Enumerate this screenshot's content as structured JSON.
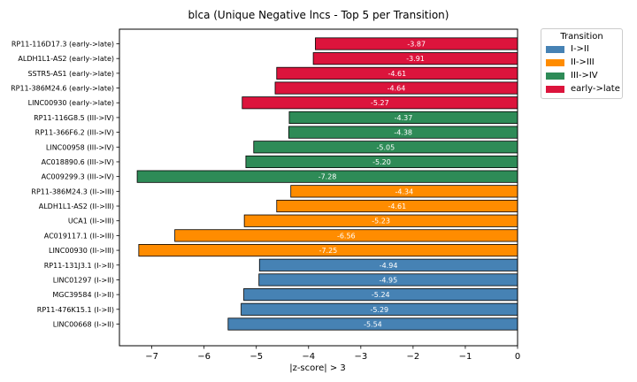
{
  "chart_data": {
    "type": "bar",
    "orientation": "horizontal",
    "title": "blca (Unique Negative lncs - Top 5 per Transition)",
    "xlabel": "|z-score| > 3",
    "xlim": [
      -7.62,
      0
    ],
    "xticks": [
      -7,
      -6,
      -5,
      -4,
      -3,
      -2,
      -1,
      0
    ],
    "xtick_labels": [
      "−7",
      "−6",
      "−5",
      "−4",
      "−3",
      "−2",
      "−1",
      "0"
    ],
    "legend": {
      "title": "Transition",
      "position": "upper-right-outside",
      "entries": [
        {
          "label": "I->II",
          "color": "#4682b4"
        },
        {
          "label": "II->III",
          "color": "#ff8c00"
        },
        {
          "label": "III->IV",
          "color": "#2e8b57"
        },
        {
          "label": "early->late",
          "color": "#dc143c"
        }
      ]
    },
    "bars": [
      {
        "label": "RP11-116D17.3 (early->late)",
        "value": -3.87,
        "value_label": "-3.87",
        "group": "early->late",
        "color": "#dc143c"
      },
      {
        "label": "ALDH1L1-AS2 (early->late)",
        "value": -3.91,
        "value_label": "-3.91",
        "group": "early->late",
        "color": "#dc143c"
      },
      {
        "label": "SSTR5-AS1 (early->late)",
        "value": -4.61,
        "value_label": "-4.61",
        "group": "early->late",
        "color": "#dc143c"
      },
      {
        "label": "RP11-386M24.6 (early->late)",
        "value": -4.64,
        "value_label": "-4.64",
        "group": "early->late",
        "color": "#dc143c"
      },
      {
        "label": "LINC00930 (early->late)",
        "value": -5.27,
        "value_label": "-5.27",
        "group": "early->late",
        "color": "#dc143c"
      },
      {
        "label": "RP11-116G8.5 (III->IV)",
        "value": -4.37,
        "value_label": "-4.37",
        "group": "III->IV",
        "color": "#2e8b57"
      },
      {
        "label": "RP11-366F6.2 (III->IV)",
        "value": -4.38,
        "value_label": "-4.38",
        "group": "III->IV",
        "color": "#2e8b57"
      },
      {
        "label": "LINC00958 (III->IV)",
        "value": -5.05,
        "value_label": "-5.05",
        "group": "III->IV",
        "color": "#2e8b57"
      },
      {
        "label": "AC018890.6 (III->IV)",
        "value": -5.2,
        "value_label": "-5.20",
        "group": "III->IV",
        "color": "#2e8b57"
      },
      {
        "label": "AC009299.3 (III->IV)",
        "value": -7.28,
        "value_label": "-7.28",
        "group": "III->IV",
        "color": "#2e8b57"
      },
      {
        "label": "RP11-386M24.3 (II->III)",
        "value": -4.34,
        "value_label": "-4.34",
        "group": "II->III",
        "color": "#ff8c00"
      },
      {
        "label": "ALDH1L1-AS2 (II->III)",
        "value": -4.61,
        "value_label": "-4.61",
        "group": "II->III",
        "color": "#ff8c00"
      },
      {
        "label": "UCA1 (II->III)",
        "value": -5.23,
        "value_label": "-5.23",
        "group": "II->III",
        "color": "#ff8c00"
      },
      {
        "label": "AC019117.1 (II->III)",
        "value": -6.56,
        "value_label": "-6.56",
        "group": "II->III",
        "color": "#ff8c00"
      },
      {
        "label": "LINC00930 (II->III)",
        "value": -7.25,
        "value_label": "-7.25",
        "group": "II->III",
        "color": "#ff8c00"
      },
      {
        "label": "RP11-131J3.1 (I->II)",
        "value": -4.94,
        "value_label": "-4.94",
        "group": "I->II",
        "color": "#4682b4"
      },
      {
        "label": "LINC01297 (I->II)",
        "value": -4.95,
        "value_label": "-4.95",
        "group": "I->II",
        "color": "#4682b4"
      },
      {
        "label": "MGC39584 (I->II)",
        "value": -5.24,
        "value_label": "-5.24",
        "group": "I->II",
        "color": "#4682b4"
      },
      {
        "label": "RP11-476K15.1 (I->II)",
        "value": -5.29,
        "value_label": "-5.29",
        "group": "I->II",
        "color": "#4682b4"
      },
      {
        "label": "LINC00668 (I->II)",
        "value": -5.54,
        "value_label": "-5.54",
        "group": "I->II",
        "color": "#4682b4"
      }
    ]
  }
}
